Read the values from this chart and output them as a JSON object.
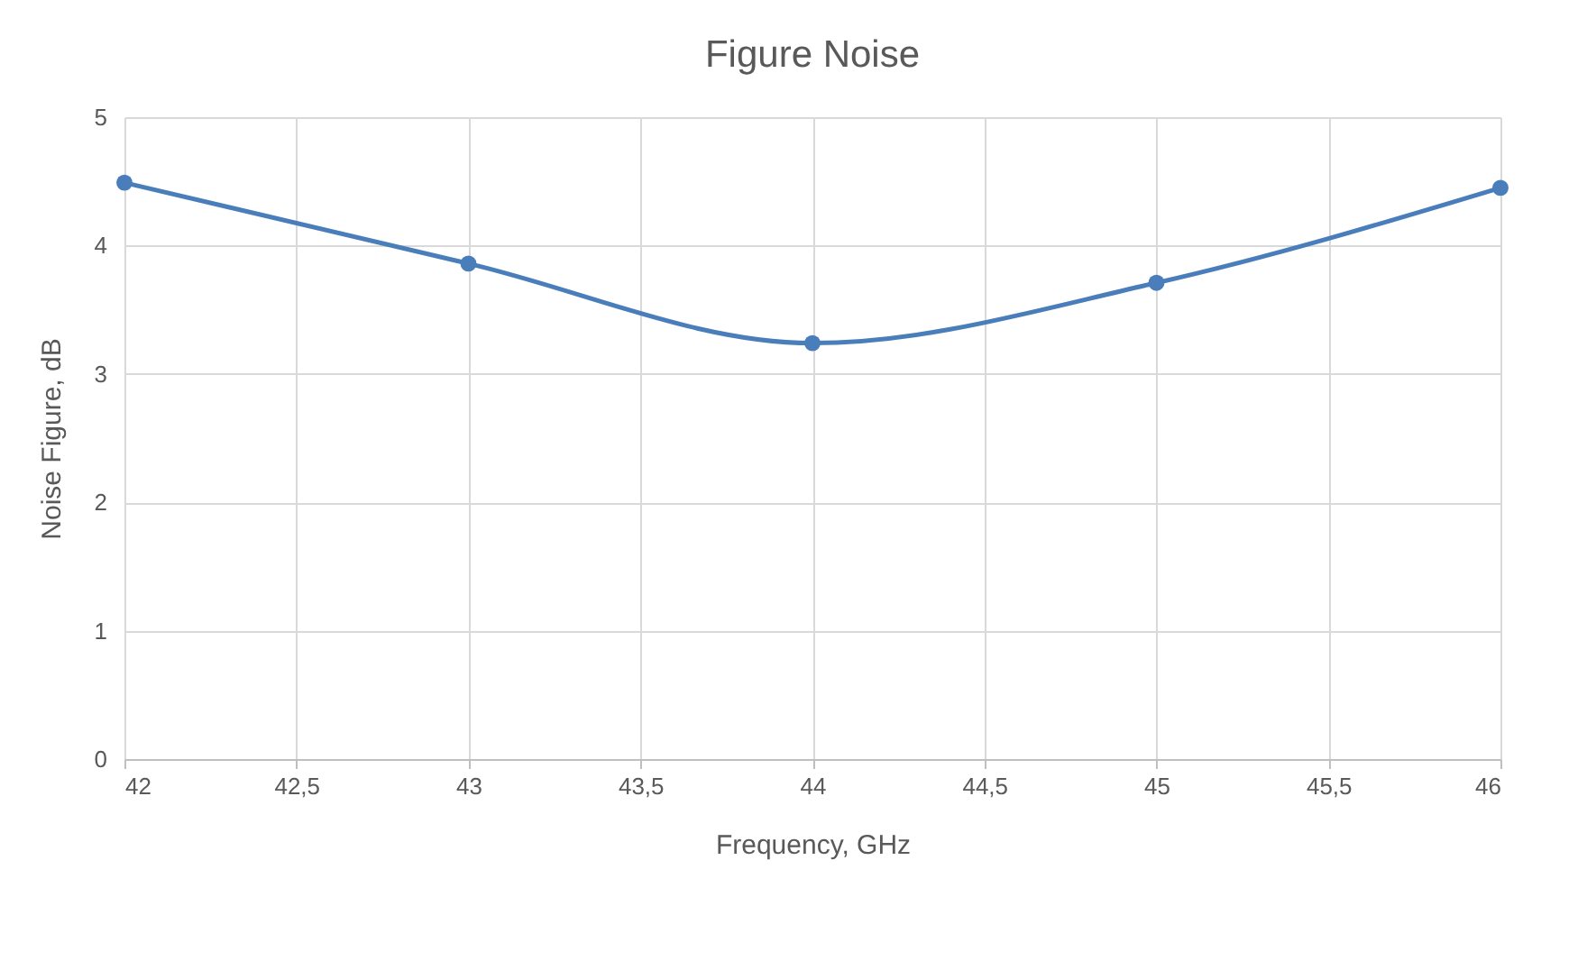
{
  "chart_data": {
    "type": "line",
    "title": "Figure Noise",
    "xlabel": "Frequency, GHz",
    "ylabel": "Noise Figure, dB",
    "x": [
      42,
      43,
      44,
      45,
      46
    ],
    "series": [
      {
        "color": "#4a7ebb",
        "values": [
          4.49,
          3.86,
          3.24,
          3.71,
          4.45
        ]
      }
    ],
    "xlim": [
      42,
      46
    ],
    "xticks": [
      42,
      {
        "value": 42.5,
        "label": "42,5"
      },
      43,
      {
        "value": 43.5,
        "label": "43,5"
      },
      44,
      {
        "value": 44.5,
        "label": "44,5"
      },
      45,
      {
        "value": 45.5,
        "label": "45,5"
      },
      46
    ],
    "ylim": [
      0,
      5
    ],
    "yticks": [
      0,
      1,
      2,
      3,
      4,
      5
    ],
    "grid": true,
    "marker": "circle",
    "line_style": "solid"
  }
}
